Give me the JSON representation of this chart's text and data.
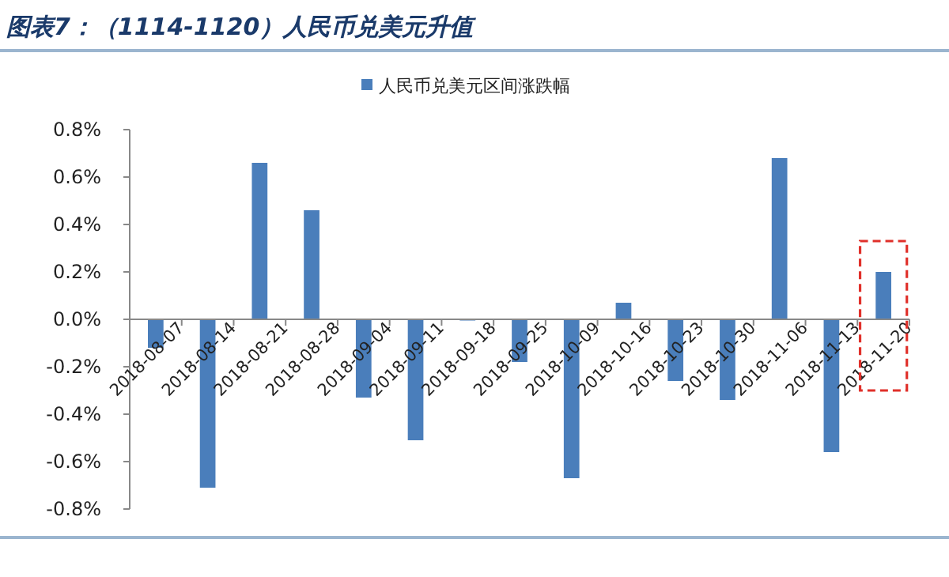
{
  "chart_data": {
    "type": "bar",
    "title": "图表7：（1114-1120）人民币兑美元升值",
    "categories": [
      "2018-08-07",
      "2018-08-14",
      "2018-08-21",
      "2018-08-28",
      "2018-09-04",
      "2018-09-11",
      "2018-09-18",
      "2018-09-25",
      "2018-10-09",
      "2018-10-16",
      "2018-10-23",
      "2018-10-30",
      "2018-11-06",
      "2018-11-13",
      "2018-11-20"
    ],
    "series": [
      {
        "name": "人民币兑美元区间涨跌幅",
        "color": "#4a7ebb",
        "values": [
          -0.12,
          -0.71,
          0.66,
          0.46,
          -0.33,
          -0.51,
          -0.005,
          -0.18,
          -0.67,
          0.07,
          -0.26,
          -0.34,
          0.68,
          -0.56,
          0.2
        ]
      }
    ],
    "ylim": [
      -0.8,
      0.8
    ],
    "yticks": [
      {
        "value": -0.8,
        "label": "-0.8%"
      },
      {
        "value": -0.6,
        "label": "-0.6%"
      },
      {
        "value": -0.4,
        "label": "-0.4%"
      },
      {
        "value": -0.2,
        "label": "-0.2%"
      },
      {
        "value": 0,
        "label": "0.0%"
      },
      {
        "value": 0.2,
        "label": "0.2%"
      },
      {
        "value": 0.4,
        "label": "0.4%"
      },
      {
        "value": 0.6,
        "label": "0.6%"
      },
      {
        "value": 0.8,
        "label": "0.8%"
      }
    ],
    "legend": "top",
    "grid": false
  }
}
